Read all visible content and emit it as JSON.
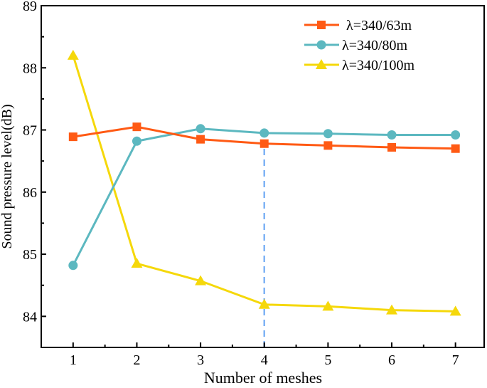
{
  "chart_data": {
    "type": "line",
    "title": "",
    "xlabel": "Number of meshes",
    "ylabel": "Sound pressure level(dB)",
    "x": [
      1,
      2,
      3,
      4,
      5,
      6,
      7
    ],
    "xticks": [
      "1",
      "2",
      "3",
      "4",
      "5",
      "6",
      "7"
    ],
    "yticks": [
      "84",
      "85",
      "86",
      "87",
      "88",
      "89"
    ],
    "xlim": [
      0.5,
      7.45
    ],
    "ylim": [
      83.5,
      89
    ],
    "grid": false,
    "legend_position": "top-right",
    "reference_line": {
      "x": 4,
      "style": "dashed",
      "color": "#7fb3f5",
      "to_y": 86.78
    },
    "series": [
      {
        "name": "λ=340/63m",
        "marker": "square",
        "color": "#ff5a14",
        "values": [
          86.89,
          87.05,
          86.85,
          86.78,
          86.75,
          86.72,
          86.7
        ]
      },
      {
        "name": "λ=340/80m",
        "marker": "circle",
        "color": "#5cb8c0",
        "values": [
          84.82,
          86.82,
          87.02,
          86.95,
          86.94,
          86.92,
          86.92
        ]
      },
      {
        "name": "λ=340/100m",
        "marker": "triangle",
        "color": "#f5d80a",
        "values": [
          88.2,
          84.85,
          84.57,
          84.19,
          84.16,
          84.1,
          84.08
        ]
      }
    ]
  }
}
